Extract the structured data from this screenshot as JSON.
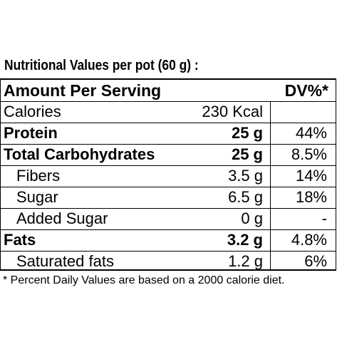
{
  "heading": "Nutritional Values per pot (60 g) :",
  "header": {
    "name": "Amount Per Serving",
    "dv": "DV%*"
  },
  "rows": [
    {
      "name": "Calories",
      "amount": "230 Kcal",
      "dv": ""
    },
    {
      "name": "Protein",
      "amount": "25 g",
      "dv": "44%"
    },
    {
      "name": "Total Carbohydrates",
      "amount": "25 g",
      "dv": "8.5%"
    },
    {
      "name": "Fibers",
      "amount": "3.5 g",
      "dv": "14%"
    },
    {
      "name": "Sugar",
      "amount": "6.5 g",
      "dv": "18%"
    },
    {
      "name": "Added Sugar",
      "amount": "0 g",
      "dv": "-"
    },
    {
      "name": "Fats",
      "amount": "3.2 g",
      "dv": "4.8%"
    },
    {
      "name": "Saturated fats",
      "amount": "1.2 g",
      "dv": "6%"
    }
  ],
  "footnote": "* Percent Daily Values are based on a 2000 calorie diet."
}
